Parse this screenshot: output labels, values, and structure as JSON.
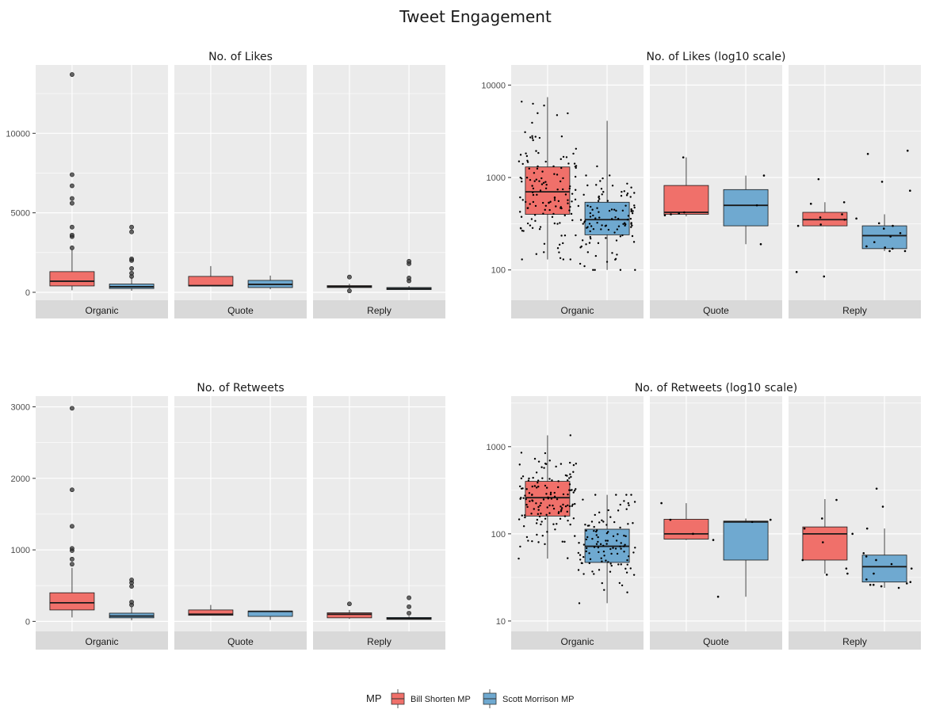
{
  "title": "Tweet Engagement",
  "colors": {
    "bill": "#F0706A",
    "scott": "#6FA9D0",
    "panel_bg": "#EBEBEB",
    "grid": "#FFFFFF",
    "strip_bg": "#D9D9D9"
  },
  "legend": {
    "title": "MP",
    "items": [
      {
        "label": "Bill Shorten MP",
        "color": "#F0706A"
      },
      {
        "label": "Scott Morrison MP",
        "color": "#6FA9D0"
      }
    ],
    "placement": "bottom"
  },
  "chart_data": [
    {
      "type": "boxplot",
      "title": "No. of Likes",
      "scale": "linear",
      "ylim": [
        -500,
        14300
      ],
      "yticks": [
        0,
        5000,
        10000
      ],
      "ytick_labels": [
        "0",
        "5000",
        "10000"
      ],
      "facets": [
        "Organic",
        "Quote",
        "Reply"
      ],
      "series": [
        {
          "name": "Bill Shorten MP",
          "facet": "Organic",
          "q1": 400,
          "median": 700,
          "q3": 1300,
          "whisker_low": 130,
          "whisker_high": 2700,
          "outliers": [
            2800,
            3500,
            3600,
            4100,
            5600,
            5900,
            6700,
            7400,
            13700
          ]
        },
        {
          "name": "Scott Morrison MP",
          "facet": "Organic",
          "q1": 240,
          "median": 350,
          "q3": 520,
          "whisker_low": 100,
          "whisker_high": 950,
          "outliers": [
            1000,
            1200,
            1500,
            2000,
            2100,
            3800,
            4100
          ]
        },
        {
          "name": "Bill Shorten MP",
          "facet": "Quote",
          "q1": 400,
          "median": 420,
          "q3": 1000,
          "whisker_low": 380,
          "whisker_high": 1650,
          "outliers": []
        },
        {
          "name": "Scott Morrison MP",
          "facet": "Quote",
          "q1": 300,
          "median": 500,
          "q3": 750,
          "whisker_low": 190,
          "whisker_high": 1050,
          "outliers": []
        },
        {
          "name": "Bill Shorten MP",
          "facet": "Reply",
          "q1": 300,
          "median": 350,
          "q3": 420,
          "whisker_low": 200,
          "whisker_high": 540,
          "outliers": [
            90,
            960
          ]
        },
        {
          "name": "Scott Morrison MP",
          "facet": "Reply",
          "q1": 170,
          "median": 230,
          "q3": 300,
          "whisker_low": 150,
          "whisker_high": 400,
          "outliers": [
            720,
            900,
            1800,
            1950
          ]
        }
      ]
    },
    {
      "type": "boxplot",
      "title": "No. of Likes (log10 scale)",
      "scale": "log10",
      "ylim": [
        47,
        16500
      ],
      "yticks": [
        100,
        1000,
        10000
      ],
      "ytick_labels": [
        "100",
        "1000",
        "10000"
      ],
      "facets": [
        "Organic",
        "Quote",
        "Reply"
      ],
      "series": [
        {
          "name": "Bill Shorten MP",
          "facet": "Organic",
          "q1": 400,
          "median": 700,
          "q3": 1300,
          "whisker_low": 130,
          "whisker_high": 7400,
          "jitter_points": 140
        },
        {
          "name": "Scott Morrison MP",
          "facet": "Organic",
          "q1": 240,
          "median": 350,
          "q3": 540,
          "whisker_low": 100,
          "whisker_high": 4100,
          "jitter_points": 110
        },
        {
          "name": "Bill Shorten MP",
          "facet": "Quote",
          "q1": 400,
          "median": 420,
          "q3": 820,
          "whisker_low": 380,
          "whisker_high": 1650,
          "points": [
            1650,
            390,
            400,
            420,
            410
          ]
        },
        {
          "name": "Scott Morrison MP",
          "facet": "Quote",
          "q1": 300,
          "median": 500,
          "q3": 740,
          "whisker_low": 190,
          "whisker_high": 1050,
          "points": [
            190,
            500,
            1050
          ]
        },
        {
          "name": "Bill Shorten MP",
          "facet": "Reply",
          "q1": 300,
          "median": 350,
          "q3": 420,
          "whisker_low": 300,
          "whisker_high": 540,
          "points": [
            960,
            95,
            85,
            300,
            310,
            350,
            370,
            400,
            520,
            540
          ]
        },
        {
          "name": "Scott Morrison MP",
          "facet": "Reply",
          "q1": 170,
          "median": 235,
          "q3": 300,
          "whisker_low": 160,
          "whisker_high": 400,
          "points": [
            1950,
            1800,
            900,
            720,
            160,
            170,
            180,
            200,
            230,
            250,
            280,
            300,
            320,
            360,
            160,
            175
          ]
        }
      ]
    },
    {
      "type": "boxplot",
      "title": "No. of Retweets",
      "scale": "linear",
      "ylim": [
        -140,
        3150
      ],
      "yticks": [
        0,
        1000,
        2000,
        3000
      ],
      "ytick_labels": [
        "0",
        "1000",
        "2000",
        "3000"
      ],
      "facets": [
        "Organic",
        "Quote",
        "Reply"
      ],
      "series": [
        {
          "name": "Bill Shorten MP",
          "facet": "Organic",
          "q1": 160,
          "median": 260,
          "q3": 400,
          "whisker_low": 55,
          "whisker_high": 750,
          "outliers": [
            800,
            870,
            990,
            1020,
            1330,
            1840,
            2980
          ]
        },
        {
          "name": "Scott Morrison MP",
          "facet": "Organic",
          "q1": 50,
          "median": 75,
          "q3": 115,
          "whisker_low": 15,
          "whisker_high": 200,
          "outliers": [
            230,
            270,
            490,
            540,
            580
          ]
        },
        {
          "name": "Bill Shorten MP",
          "facet": "Quote",
          "q1": 85,
          "median": 100,
          "q3": 160,
          "whisker_low": 80,
          "whisker_high": 230,
          "outliers": []
        },
        {
          "name": "Scott Morrison MP",
          "facet": "Quote",
          "q1": 70,
          "median": 140,
          "q3": 145,
          "whisker_low": 20,
          "whisker_high": 150,
          "outliers": []
        },
        {
          "name": "Bill Shorten MP",
          "facet": "Reply",
          "q1": 50,
          "median": 100,
          "q3": 120,
          "whisker_low": 35,
          "whisker_high": 160,
          "outliers": [
            245
          ]
        },
        {
          "name": "Scott Morrison MP",
          "facet": "Reply",
          "q1": 28,
          "median": 40,
          "q3": 55,
          "whisker_low": 24,
          "whisker_high": 75,
          "outliers": [
            115,
            205,
            330
          ]
        }
      ]
    },
    {
      "type": "boxplot",
      "title": "No. of Retweets (log10 scale)",
      "scale": "log10",
      "ylim": [
        7.6,
        3800
      ],
      "yticks": [
        10,
        100,
        1000
      ],
      "ytick_labels": [
        "10",
        "100",
        "1000"
      ],
      "facets": [
        "Organic",
        "Quote",
        "Reply"
      ],
      "series": [
        {
          "name": "Bill Shorten MP",
          "facet": "Organic",
          "q1": 160,
          "median": 260,
          "q3": 400,
          "whisker_low": 52,
          "whisker_high": 1350,
          "jitter_points": 140
        },
        {
          "name": "Scott Morrison MP",
          "facet": "Organic",
          "q1": 47,
          "median": 72,
          "q3": 113,
          "whisker_low": 16,
          "whisker_high": 280,
          "jitter_points": 110
        },
        {
          "name": "Bill Shorten MP",
          "facet": "Quote",
          "q1": 87,
          "median": 100,
          "q3": 147,
          "whisker_low": 85,
          "whisker_high": 225,
          "points": [
            225,
            85,
            100,
            145
          ]
        },
        {
          "name": "Scott Morrison MP",
          "facet": "Quote",
          "q1": 50,
          "median": 137,
          "q3": 140,
          "whisker_low": 19,
          "whisker_high": 150,
          "points": [
            19,
            137,
            145
          ]
        },
        {
          "name": "Bill Shorten MP",
          "facet": "Reply",
          "q1": 50,
          "median": 100,
          "q3": 120,
          "whisker_low": 35,
          "whisker_high": 250,
          "points": [
            245,
            150,
            115,
            100,
            80,
            50,
            35,
            34,
            40
          ]
        },
        {
          "name": "Scott Morrison MP",
          "facet": "Reply",
          "q1": 28,
          "median": 42,
          "q3": 57,
          "whisker_low": 24,
          "whisker_high": 115,
          "points": [
            330,
            205,
            115,
            60,
            55,
            50,
            45,
            40,
            35,
            30,
            28,
            27,
            26,
            25,
            24,
            26
          ]
        }
      ]
    }
  ]
}
